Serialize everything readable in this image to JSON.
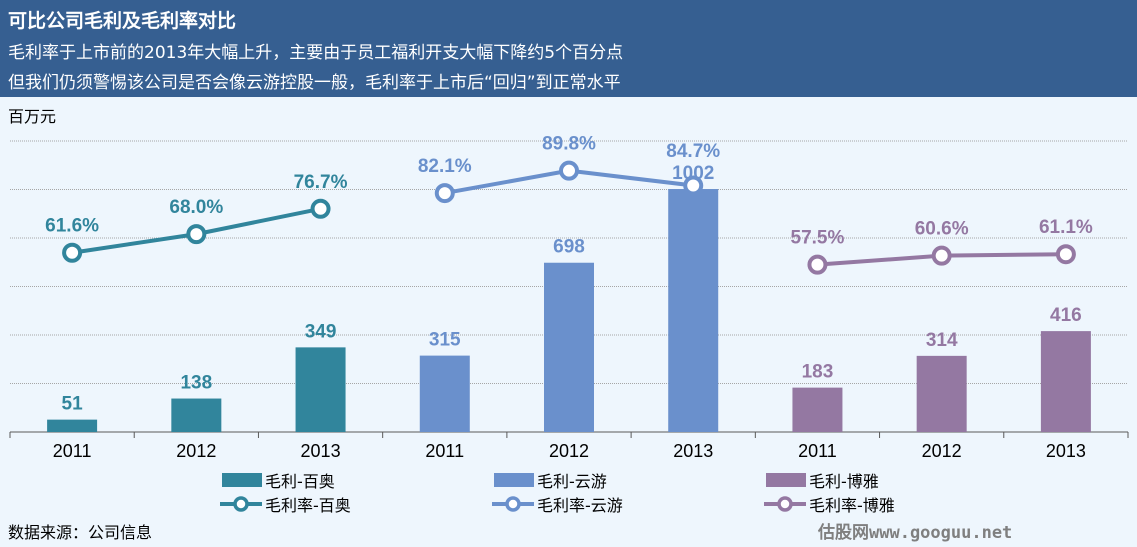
{
  "header": {
    "title": "可比公司毛利及毛利率对比",
    "subtitle1": "毛利率于上市前的2013年大幅上升，主要由于员工福利开支大幅下降约5个百分点",
    "subtitle2": "但我们仍须警惕该公司是否会像云游控股一般，毛利率于上市后“回归”到正常水平"
  },
  "footer": {
    "source": "数据来源：公司信息",
    "watermark": "估股网www.googuu.net"
  },
  "chart_data": {
    "type": "bar+line",
    "title": "可比公司毛利及毛利率对比",
    "ylabel": "百万元",
    "ylim": [
      0,
      1200
    ],
    "y2lim": [
      0,
      100
    ],
    "grid": true,
    "legend_position": "bottom",
    "categories": [
      "2011",
      "2012",
      "2013",
      "2011",
      "2012",
      "2013",
      "2011",
      "2012",
      "2013"
    ],
    "bar_series": [
      {
        "name": "毛利-百奥",
        "color": "#31859c",
        "indices": [
          0,
          1,
          2
        ],
        "values": [
          51,
          138,
          349
        ]
      },
      {
        "name": "毛利-云游",
        "color": "#6a90cc",
        "indices": [
          3,
          4,
          5
        ],
        "values": [
          315,
          698,
          1002
        ]
      },
      {
        "name": "毛利-博雅",
        "color": "#9478a2",
        "indices": [
          6,
          7,
          8
        ],
        "values": [
          183,
          314,
          416
        ]
      }
    ],
    "line_series": [
      {
        "name": "毛利率-百奥",
        "color": "#31859c",
        "indices": [
          0,
          1,
          2
        ],
        "values": [
          61.6,
          68.0,
          76.7
        ]
      },
      {
        "name": "毛利率-云游",
        "color": "#6a90cc",
        "indices": [
          3,
          4,
          5
        ],
        "values": [
          82.1,
          89.8,
          84.7
        ]
      },
      {
        "name": "毛利率-博雅",
        "color": "#9478a2",
        "indices": [
          6,
          7,
          8
        ],
        "values": [
          57.5,
          60.6,
          61.1
        ]
      }
    ]
  }
}
